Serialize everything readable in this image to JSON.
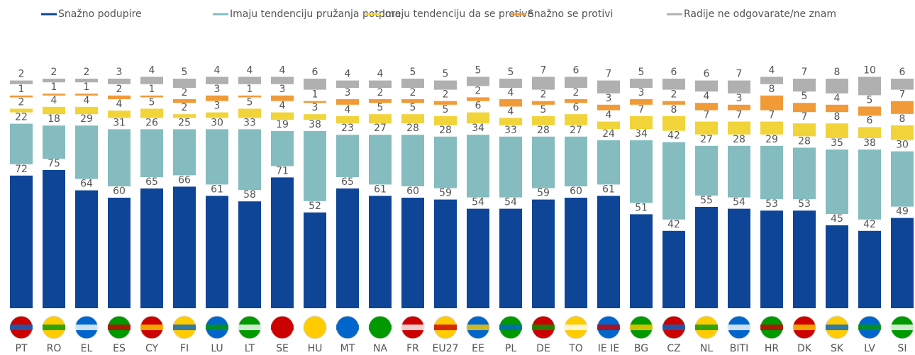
{
  "chart_data": {
    "type": "stacked_bar",
    "categories": [
      "PT",
      "RO",
      "EL",
      "ES",
      "CY",
      "FI",
      "LU",
      "LT",
      "SE",
      "HU",
      "MT",
      "NA",
      "FR",
      "EU27",
      "EE",
      "PL",
      "DE",
      "TO",
      "IE IE",
      "BG",
      "CZ",
      "NL",
      "BITI",
      "HR",
      "DK",
      "SK",
      "LV",
      "SI"
    ],
    "series": [
      {
        "name": "Snažno podupire",
        "color": "#0e4597",
        "values": [
          72,
          75,
          64,
          60,
          65,
          66,
          61,
          58,
          71,
          52,
          65,
          61,
          60,
          59,
          54,
          54,
          59,
          60,
          61,
          51,
          42,
          55,
          54,
          53,
          53,
          45,
          42,
          49
        ]
      },
      {
        "name": "Imaju tendenciju pružanja potpore",
        "color": "#85bcbf",
        "values": [
          22,
          18,
          29,
          31,
          26,
          25,
          30,
          33,
          19,
          38,
          23,
          27,
          28,
          28,
          34,
          33,
          28,
          27,
          24,
          34,
          42,
          27,
          28,
          29,
          28,
          35,
          38,
          30
        ]
      },
      {
        "name": "Imaju tendenciju da se protive",
        "color": "#f0d43a",
        "values": [
          2,
          4,
          4,
          4,
          5,
          2,
          3,
          5,
          4,
          3,
          4,
          5,
          5,
          5,
          6,
          4,
          5,
          6,
          4,
          7,
          8,
          7,
          7,
          7,
          7,
          8,
          6,
          8
        ]
      },
      {
        "name": "Snažno se protivi",
        "color": "#f19a38",
        "values": [
          1,
          1,
          1,
          2,
          1,
          2,
          3,
          1,
          3,
          1,
          3,
          2,
          2,
          2,
          2,
          4,
          2,
          2,
          3,
          3,
          2,
          4,
          3,
          8,
          5,
          4,
          5,
          7
        ]
      },
      {
        "name": "Radije ne odgovarate/ne znam",
        "color": "#b0b0b0",
        "values": [
          2,
          2,
          2,
          3,
          4,
          5,
          4,
          4,
          4,
          6,
          4,
          4,
          5,
          5,
          5,
          5,
          7,
          6,
          7,
          5,
          6,
          6,
          7,
          4,
          7,
          8,
          10,
          6
        ]
      }
    ]
  }
}
